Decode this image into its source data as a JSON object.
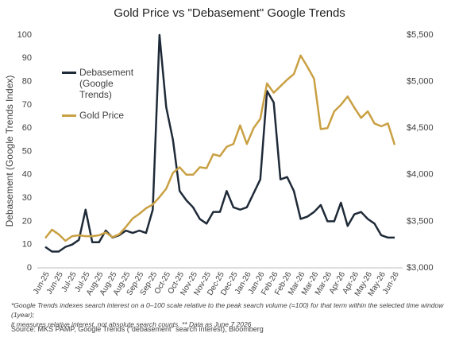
{
  "chart_data": {
    "type": "line",
    "title": "Gold Price vs \"Debasement\" Google Trends",
    "y_label": "Debasement (Google Trends Index)",
    "categories": [
      "Jun-25",
      null,
      "Jun-25",
      null,
      "Jul-25",
      null,
      "Jul-25",
      null,
      "Aug-25",
      null,
      "Aug-25",
      null,
      "Aug-25",
      null,
      "Sep-25",
      null,
      "Sep-25",
      null,
      "Oct-25",
      null,
      "Oct-25",
      null,
      "Nov-25",
      null,
      "Nov-25",
      null,
      "Dec-25",
      null,
      "Dec-25",
      null,
      "Jan-26",
      null,
      "Jan-26",
      null,
      "Feb-26",
      null,
      "Feb-26",
      null,
      "Mar-26",
      null,
      "Mar-26",
      null,
      "Mar-26",
      null,
      "Apr-26",
      null,
      "Apr-26",
      null,
      "May-26",
      null,
      "May-26",
      null,
      "Jun-26"
    ],
    "series": [
      {
        "name": "Debasement (Google Trends)",
        "color": "#1f2a38",
        "axis": "y",
        "values": [
          9,
          7,
          7,
          9,
          10,
          12,
          25,
          11,
          11,
          16,
          13,
          14,
          16,
          15,
          16,
          15,
          25,
          100,
          69,
          55,
          33,
          29,
          26,
          21,
          19,
          24,
          24,
          33,
          26,
          25,
          26,
          32,
          38,
          76,
          71,
          38,
          39,
          33,
          21,
          22,
          24,
          27,
          20,
          20,
          28,
          18,
          23,
          24,
          21,
          19,
          14,
          13,
          13
        ]
      },
      {
        "name": "Gold Price",
        "color": "#c9a043",
        "axis": "y2",
        "values": [
          3320,
          3410,
          3360,
          3290,
          3340,
          3350,
          3340,
          3340,
          3350,
          3380,
          3330,
          3360,
          3440,
          3530,
          3580,
          3640,
          3680,
          3760,
          3850,
          4020,
          4080,
          4000,
          4000,
          4080,
          4070,
          4220,
          4200,
          4300,
          4330,
          4530,
          4330,
          4500,
          4600,
          4980,
          4880,
          4950,
          5020,
          5080,
          5280,
          5160,
          5030,
          4490,
          4500,
          4680,
          4750,
          4840,
          4720,
          4610,
          4680,
          4550,
          4520,
          4550,
          4320
        ]
      }
    ],
    "ylim": [
      0,
      100
    ],
    "yticks": [
      0,
      10,
      20,
      30,
      40,
      50,
      60,
      70,
      80,
      90,
      100
    ],
    "y2lim": [
      3000,
      5500
    ],
    "y2ticks": [
      {
        "value": 3000,
        "label": "$3,000"
      },
      {
        "value": 3500,
        "label": "$3,500"
      },
      {
        "value": 4000,
        "label": "$4,000"
      },
      {
        "value": 4500,
        "label": "$4,500"
      },
      {
        "value": 5000,
        "label": "$5,000"
      },
      {
        "value": 5500,
        "label": "$5,500"
      }
    ],
    "grid": false,
    "legend": "upper left",
    "notes": [
      "*Google Trends indexes search interest on a 0–100 scale relative to the peak search volume  (=100) for that term within the selected time window (1year);",
      "it measures relative interest, not absolute search counts. ** Data as June 7 2026"
    ],
    "source": "Source: MKS PAMP, Google Trends (\"debasement\" search interest), Bloomberg"
  }
}
